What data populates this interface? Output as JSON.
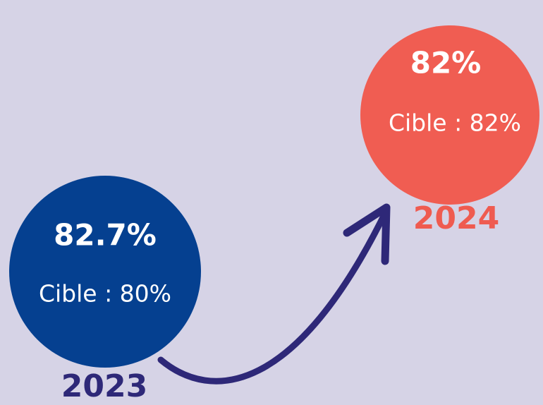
{
  "items": [
    {
      "value": "82.7%",
      "target": "Cible : 80%",
      "year": "2023"
    },
    {
      "value": "82%",
      "target": "Cible : 82%",
      "year": "2024"
    }
  ]
}
